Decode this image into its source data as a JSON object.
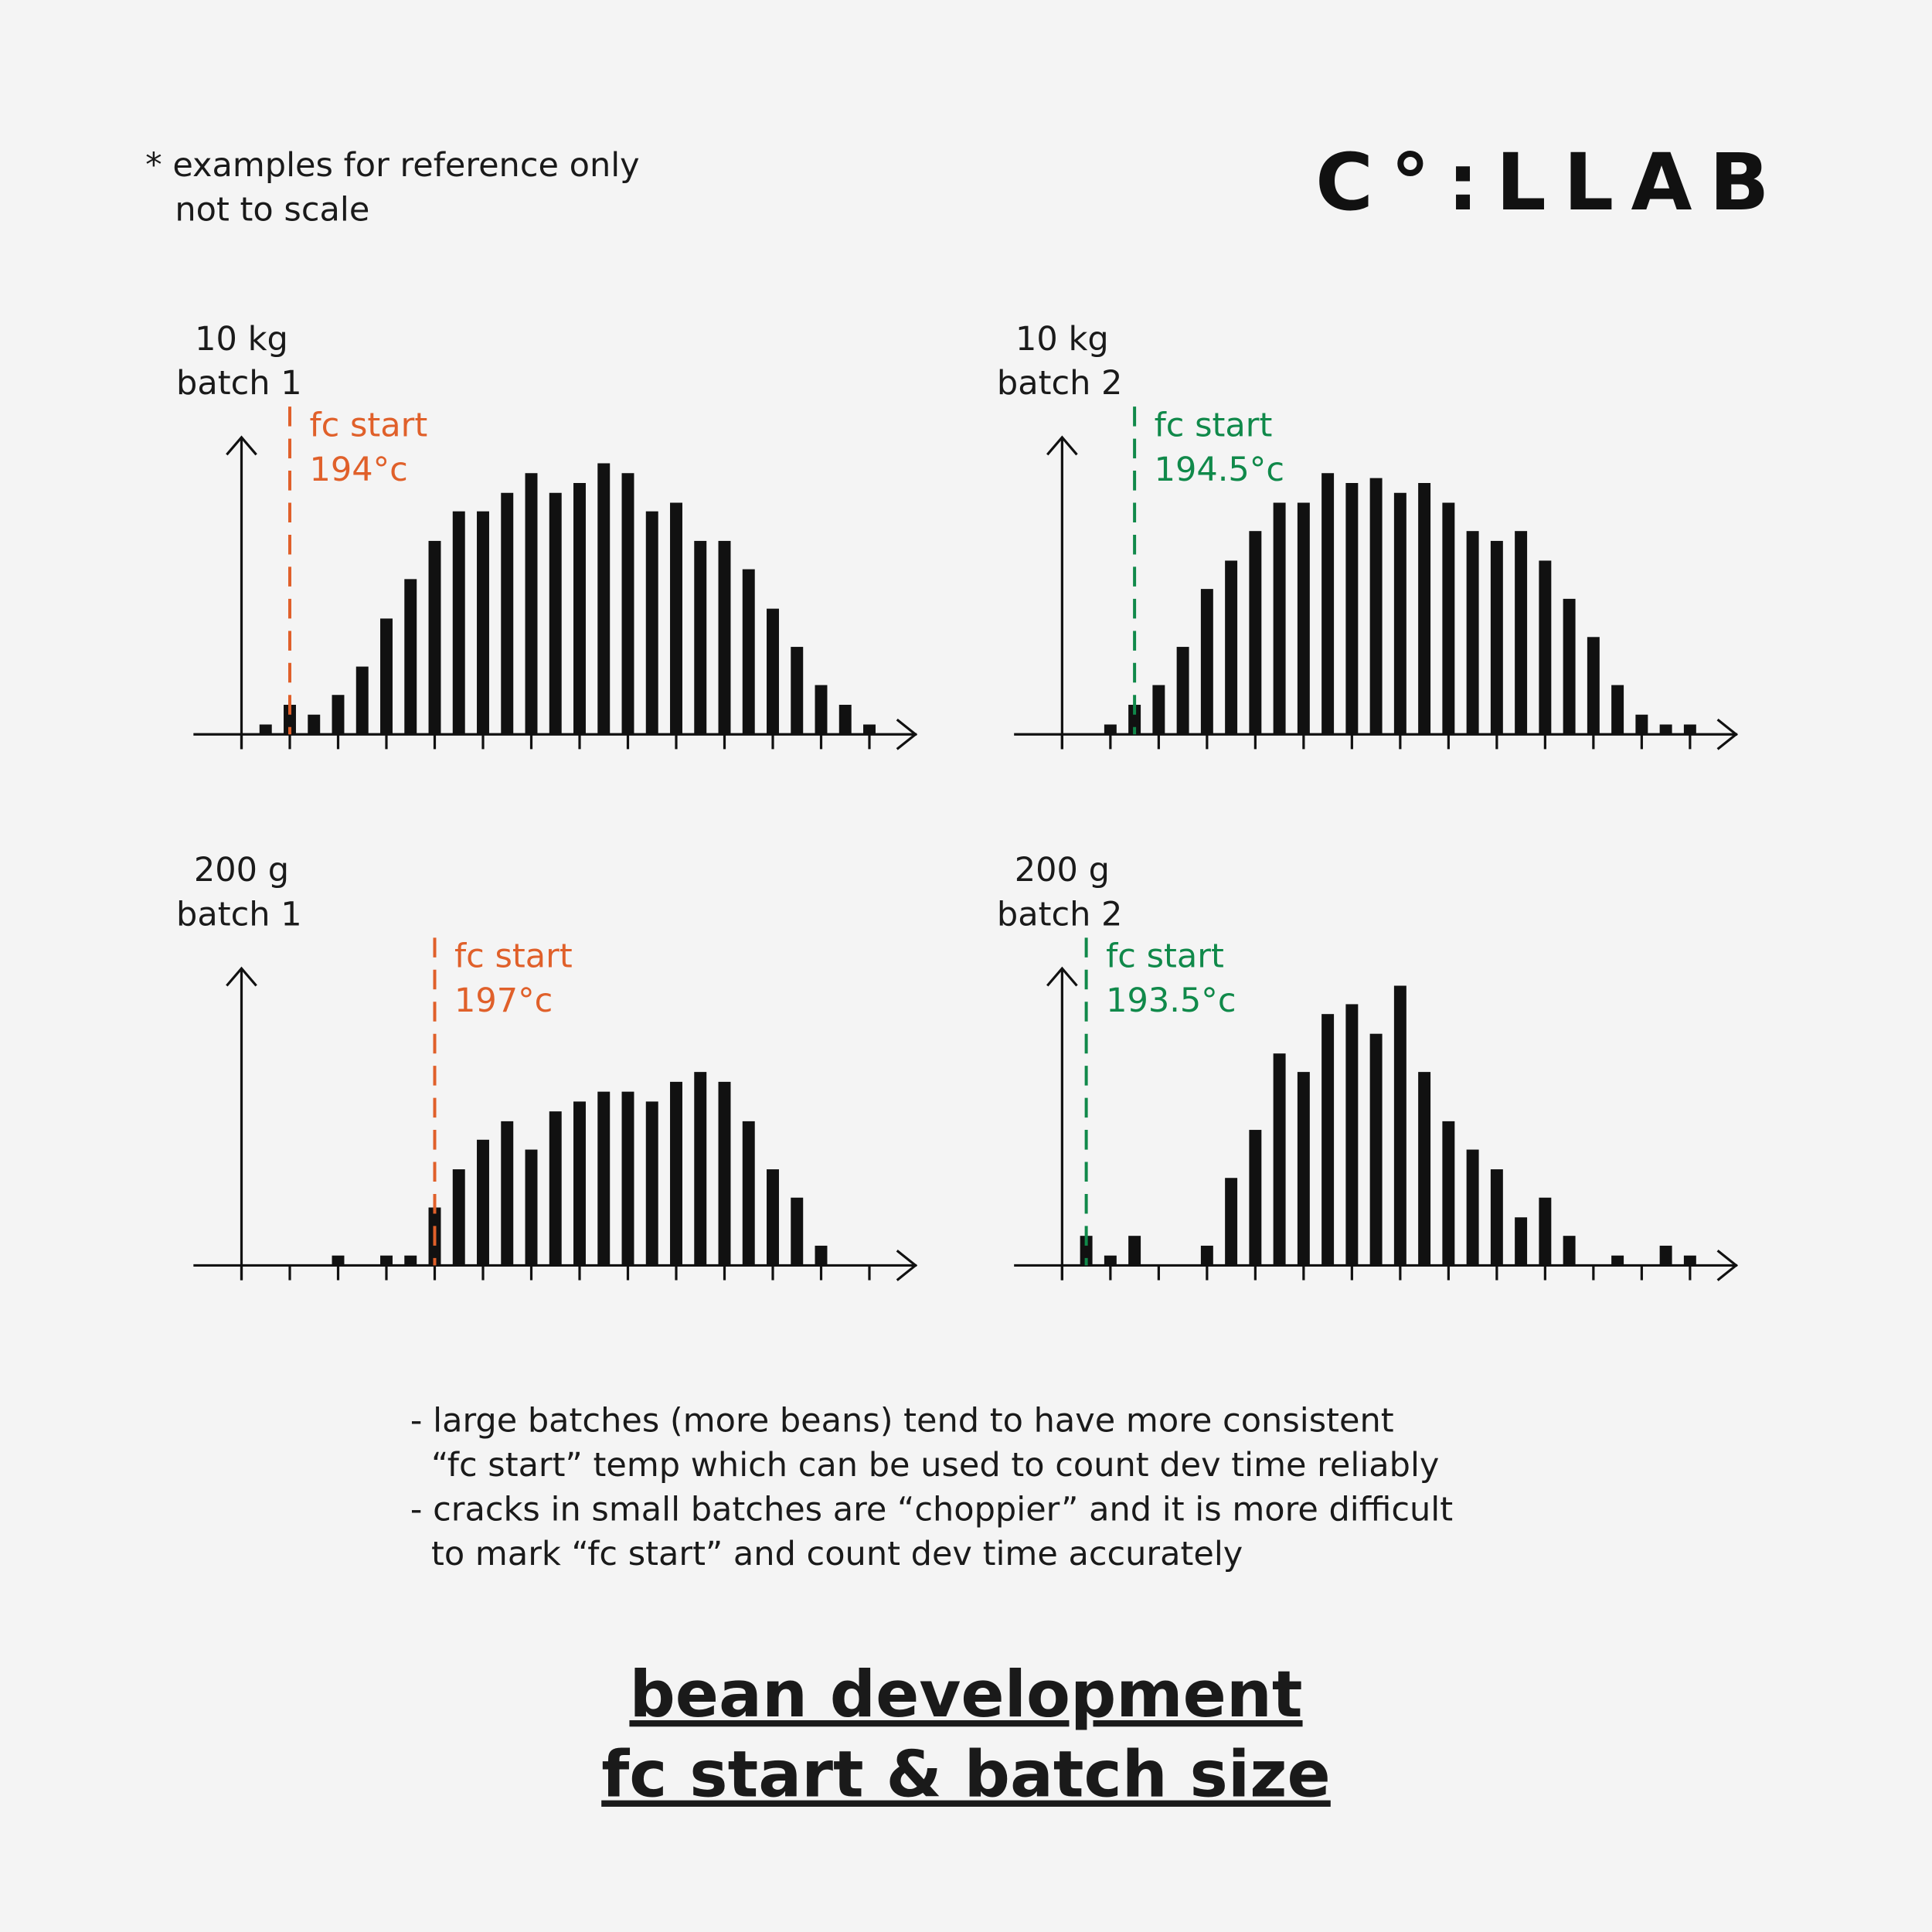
{
  "note": [
    "* examples for reference only",
    "not to scale"
  ],
  "logo": "C°:LLAB",
  "chart_data": [
    {
      "type": "bar",
      "title": [
        "10 kg",
        "batch 1"
      ],
      "color": "#111111",
      "ylim": [
        0,
        240
      ],
      "values": [
        0,
        8,
        24,
        16,
        32,
        55,
        94,
        126,
        157,
        181,
        181,
        196,
        212,
        196,
        204,
        220,
        212,
        181,
        188,
        157,
        157,
        134,
        102,
        71,
        40,
        24,
        8
      ],
      "fc": {
        "label": "fc start",
        "temp": "194°c",
        "bar": 2,
        "color": "#e0602a"
      }
    },
    {
      "type": "bar",
      "title": [
        "10 kg",
        "batch 2"
      ],
      "color": "#111111",
      "ylim": [
        0,
        240
      ],
      "values": [
        0,
        0,
        8,
        24,
        40,
        71,
        118,
        141,
        165,
        188,
        188,
        212,
        204,
        208,
        196,
        204,
        188,
        165,
        157,
        165,
        141,
        110,
        79,
        40,
        16,
        8,
        8
      ],
      "fc": {
        "label": "fc start",
        "temp": "194.5°c",
        "bar": 3,
        "color": "#10894a"
      }
    },
    {
      "type": "bar",
      "title": [
        "200 g",
        "batch 1"
      ],
      "color": "#111111",
      "ylim": [
        0,
        240
      ],
      "values": [
        0,
        0,
        0,
        0,
        8,
        0,
        8,
        8,
        47,
        78,
        102,
        117,
        94,
        125,
        133,
        141,
        141,
        133,
        149,
        157,
        149,
        117,
        78,
        55,
        16
      ],
      "fc": {
        "label": "fc start",
        "temp": "197°c",
        "bar": 8,
        "color": "#e0602a"
      }
    },
    {
      "type": "bar",
      "title": [
        "200 g",
        "batch 2"
      ],
      "color": "#111111",
      "ylim": [
        0,
        240
      ],
      "values": [
        0,
        24,
        8,
        24,
        0,
        0,
        16,
        71,
        110,
        172,
        157,
        204,
        212,
        188,
        227,
        157,
        117,
        94,
        78,
        39,
        55,
        24,
        0,
        8,
        0,
        16,
        8
      ],
      "fc": {
        "label": "fc start",
        "temp": "193.5°c",
        "bar": 1,
        "color": "#10894a"
      }
    }
  ],
  "notes": [
    "- large batches (more beans) tend to have more consistent",
    "“fc start” temp which can be used to count dev time reliably",
    "- cracks in small batches are “choppier” and it is more difficult",
    "to mark “fc start” and count dev time accurately"
  ],
  "footer": [
    "bean development",
    "fc start & batch size"
  ]
}
